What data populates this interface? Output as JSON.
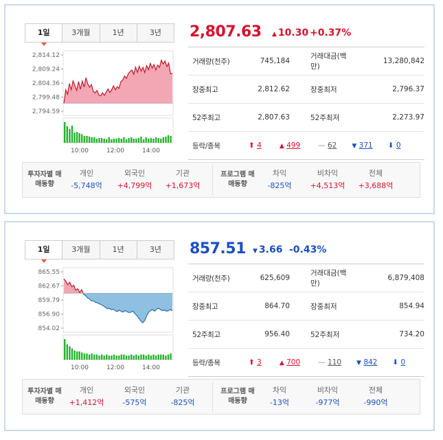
{
  "panels": [
    {
      "id": "kospi",
      "tabs": [
        "1일",
        "3개월",
        "1년",
        "3년"
      ],
      "price": "2,807.63",
      "change": "10.30",
      "change_dir": "up",
      "pct": "+0.37%",
      "stats": [
        {
          "l1": "거래량(천주)",
          "v1": "745,184",
          "l2": "거래대금(백만)",
          "v2": "13,280,842"
        },
        {
          "l1": "장중최고",
          "v1": "2,812.62",
          "l2": "장중최저",
          "v2": "2,796.37"
        },
        {
          "l1": "52주최고",
          "v1": "2,807.63",
          "l2": "52주최저",
          "v2": "2,273.97"
        }
      ],
      "breadth_label": "등락/종목",
      "breadth": [
        {
          "sym": "⬆",
          "val": "4",
          "color": "#d6122d"
        },
        {
          "sym": "▲",
          "val": "499",
          "color": "#d6122d"
        },
        {
          "sym": "—",
          "val": "62",
          "color": "#888888"
        },
        {
          "sym": "▼",
          "val": "371",
          "color": "#1a4fc0"
        },
        {
          "sym": "⬇",
          "val": "0",
          "color": "#1a4fc0"
        }
      ],
      "investor_label": "투자자별 매매동향",
      "investors": [
        {
          "h": "개인",
          "v": "-5,748억",
          "dir": "dn"
        },
        {
          "h": "외국인",
          "v": "+4,799억",
          "dir": "up"
        },
        {
          "h": "기관",
          "v": "+1,673억",
          "dir": "up"
        }
      ],
      "program_label": "프로그램 매매동향",
      "program": [
        {
          "h": "차익",
          "v": "-825억",
          "dir": "dn"
        },
        {
          "h": "비차익",
          "v": "+4,513억",
          "dir": "up"
        },
        {
          "h": "전체",
          "v": "+3,688억",
          "dir": "up"
        }
      ],
      "chart": {
        "y_ticks": [
          "2,814.12",
          "2,809.24",
          "2,804.36",
          "2,799.48",
          "2,794.59"
        ],
        "x_ticks": [
          "10:00",
          "12:00",
          "14:00"
        ],
        "baseline": 2797.33,
        "fill_up": "#f3a6b3",
        "line": "#c0182c",
        "series": [
          2797.3,
          2802.0,
          2800.5,
          2804.2,
          2802.1,
          2805.1,
          2803.4,
          2801.8,
          2804.9,
          2802.2,
          2805.0,
          2803.0,
          2806.2,
          2804.1,
          2802.9,
          2803.8,
          2801.5,
          2800.9,
          2801.8,
          2800.3,
          2799.9,
          2801.0,
          2800.1,
          2801.2,
          2802.3,
          2801.1,
          2802.0,
          2803.4,
          2802.0,
          2803.1,
          2802.5,
          2804.9,
          2805.4,
          2806.8,
          2806.0,
          2807.6,
          2808.3,
          2808.9,
          2807.4,
          2809.9,
          2808.1,
          2810.2,
          2808.5,
          2809.8,
          2808.0,
          2810.4,
          2809.0,
          2811.2,
          2809.6,
          2810.8,
          2808.9,
          2810.6,
          2809.8,
          2812.3,
          2811.0,
          2812.0,
          2810.1,
          2811.3,
          2807.6,
          2807.6
        ],
        "volume": [
          60,
          48,
          40,
          50,
          30,
          32,
          28,
          25,
          20,
          20,
          18,
          16,
          16,
          12,
          14,
          14,
          12,
          10,
          16,
          10,
          12,
          12,
          14,
          12,
          16,
          10,
          14,
          16,
          12,
          12,
          14,
          18,
          10,
          16,
          12,
          14,
          12,
          16,
          14,
          12,
          16,
          18,
          22,
          20
        ],
        "vol_color": "#27b12e"
      }
    },
    {
      "id": "kosdaq",
      "tabs": [
        "1일",
        "3개월",
        "1년",
        "3년"
      ],
      "price": "857.51",
      "change": "3.66",
      "change_dir": "dn",
      "pct": "-0.43%",
      "stats": [
        {
          "l1": "거래량(천주)",
          "v1": "625,609",
          "l2": "거래대금(백만)",
          "v2": "6,879,408"
        },
        {
          "l1": "장중최고",
          "v1": "864.70",
          "l2": "장중최저",
          "v2": "854.94"
        },
        {
          "l1": "52주최고",
          "v1": "956.40",
          "l2": "52주최저",
          "v2": "734.20"
        }
      ],
      "breadth_label": "등락/종목",
      "breadth": [
        {
          "sym": "⬆",
          "val": "3",
          "color": "#d6122d"
        },
        {
          "sym": "▲",
          "val": "700",
          "color": "#d6122d"
        },
        {
          "sym": "—",
          "val": "110",
          "color": "#888888"
        },
        {
          "sym": "▼",
          "val": "842",
          "color": "#1a4fc0"
        },
        {
          "sym": "⬇",
          "val": "0",
          "color": "#1a4fc0"
        }
      ],
      "investor_label": "투자자별 매매동향",
      "investors": [
        {
          "h": "개인",
          "v": "+1,412억",
          "dir": "up"
        },
        {
          "h": "외국인",
          "v": "-575억",
          "dir": "dn"
        },
        {
          "h": "기관",
          "v": "-825억",
          "dir": "dn"
        }
      ],
      "program_label": "프로그램 매매동향",
      "program": [
        {
          "h": "차익",
          "v": "-13억",
          "dir": "dn"
        },
        {
          "h": "비차익",
          "v": "-977억",
          "dir": "dn"
        },
        {
          "h": "전체",
          "v": "-990억",
          "dir": "dn"
        }
      ],
      "chart": {
        "y_ticks": [
          "865.55",
          "862.67",
          "859.79",
          "856.90",
          "854.02"
        ],
        "x_ticks": [
          "10:00",
          "12:00",
          "14:00"
        ],
        "baseline": 861.17,
        "fill_up": "#f3a6b3",
        "fill_dn": "#8fc0e2",
        "line_up": "#c0182c",
        "line_dn": "#2a6fa8",
        "series": [
          864.1,
          863.6,
          862.9,
          863.4,
          862.5,
          862.8,
          861.8,
          862.1,
          861.3,
          861.9,
          860.9,
          860.7,
          860.2,
          860.0,
          859.6,
          859.6,
          859.3,
          859.2,
          859.0,
          858.8,
          858.6,
          858.3,
          858.0,
          858.1,
          857.8,
          857.9,
          857.6,
          857.4,
          857.7,
          857.5,
          857.3,
          857.6,
          857.4,
          857.2,
          857.3,
          857.5,
          857.0,
          856.6,
          856.0,
          855.5,
          855.1,
          855.6,
          856.6,
          857.3,
          857.6,
          857.8,
          857.5,
          857.9,
          858.1,
          857.8,
          857.6,
          857.7,
          857.5,
          857.6,
          857.8,
          857.6
        ],
        "volume": [
          40,
          30,
          26,
          22,
          18,
          16,
          16,
          14,
          12,
          12,
          10,
          12,
          10,
          10,
          8,
          10,
          8,
          10,
          8,
          8,
          10,
          8,
          8,
          10,
          10,
          8,
          8,
          10,
          8,
          10,
          8,
          10,
          10,
          8,
          10,
          8,
          10,
          8,
          10,
          10,
          10,
          8,
          10,
          12
        ],
        "vol_color": "#27b12e"
      }
    }
  ]
}
